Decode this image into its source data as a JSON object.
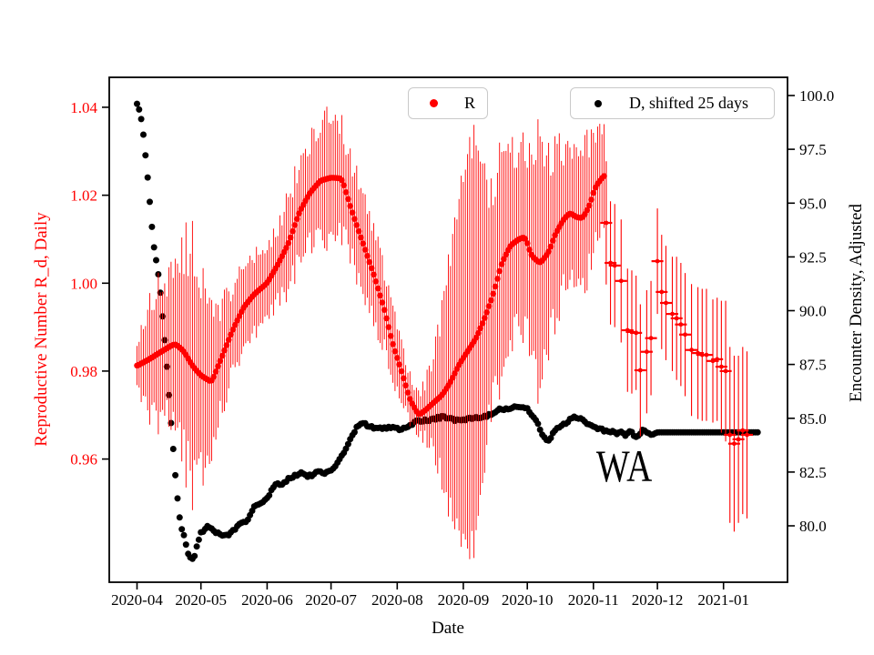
{
  "annotation": {
    "text": "WA"
  },
  "legend": [
    {
      "label": "R",
      "color": "#ff0000"
    },
    {
      "label": "D, shifted 25 days",
      "color": "#000000"
    }
  ],
  "axes": {
    "x": {
      "label": "Date",
      "lim": [
        "2020-03-19",
        "2021-01-31"
      ],
      "ticks": [
        {
          "label": "2020-04",
          "date": "2020-04-01"
        },
        {
          "label": "2020-05",
          "date": "2020-05-01"
        },
        {
          "label": "2020-06",
          "date": "2020-06-01"
        },
        {
          "label": "2020-07",
          "date": "2020-07-01"
        },
        {
          "label": "2020-08",
          "date": "2020-08-01"
        },
        {
          "label": "2020-09",
          "date": "2020-09-01"
        },
        {
          "label": "2020-10",
          "date": "2020-10-01"
        },
        {
          "label": "2020-11",
          "date": "2020-11-01"
        },
        {
          "label": "2020-12",
          "date": "2020-12-01"
        },
        {
          "label": "2021-01",
          "date": "2021-01-01"
        }
      ]
    },
    "y_left": {
      "label": "Reproductive Number R_d, Daily",
      "color": "#ff0000",
      "lim": [
        0.932,
        1.0468
      ],
      "ticks": [
        {
          "label": "1.04",
          "value": 1.04
        },
        {
          "label": "1.02",
          "value": 1.02
        },
        {
          "label": "1.00",
          "value": 1.0
        },
        {
          "label": "0.98",
          "value": 0.98
        },
        {
          "label": "0.96",
          "value": 0.96
        }
      ]
    },
    "y_right": {
      "label": "Encounter Density, Adjusted",
      "color": "#000000",
      "lim": [
        77.38,
        100.846
      ],
      "ticks": [
        {
          "label": "100.0",
          "value": 100.0
        },
        {
          "label": "97.5",
          "value": 97.5
        },
        {
          "label": "95.0",
          "value": 95.0
        },
        {
          "label": "92.5",
          "value": 92.5
        },
        {
          "label": "90.0",
          "value": 90.0
        },
        {
          "label": "87.5",
          "value": 87.5
        },
        {
          "label": "85.0",
          "value": 85.0
        },
        {
          "label": "82.5",
          "value": 82.5
        },
        {
          "label": "80.0",
          "value": 80.0
        }
      ]
    }
  },
  "chart_data": {
    "type": "scatter",
    "title": "",
    "x_unit": "date",
    "series": [
      {
        "name": "R",
        "axis": "left",
        "color": "#ff0000",
        "style": "dots-with-vertical-errorbars",
        "keypoints": [
          [
            "2020-04-01",
            0.9812,
            0.006
          ],
          [
            "2020-04-06",
            0.9825,
            0.011
          ],
          [
            "2020-04-11",
            0.984,
            0.015
          ],
          [
            "2020-04-16",
            0.9855,
            0.016
          ],
          [
            "2020-04-19",
            0.9862,
            0.018
          ],
          [
            "2020-04-23",
            0.9845,
            0.024
          ],
          [
            "2020-04-27",
            0.9812,
            0.026
          ],
          [
            "2020-05-01",
            0.979,
            0.022
          ],
          [
            "2020-05-06",
            0.9775,
            0.016
          ],
          [
            "2020-05-11",
            0.9835,
            0.011
          ],
          [
            "2020-05-16",
            0.9895,
            0.01
          ],
          [
            "2020-05-21",
            0.9945,
            0.009
          ],
          [
            "2020-05-26",
            0.9975,
            0.0085
          ],
          [
            "2020-06-01",
            1.0,
            0.008
          ],
          [
            "2020-06-06",
            1.0042,
            0.009
          ],
          [
            "2020-06-11",
            1.009,
            0.01
          ],
          [
            "2020-06-16",
            1.016,
            0.011
          ],
          [
            "2020-06-21",
            1.0205,
            0.012
          ],
          [
            "2020-06-26",
            1.0233,
            0.0135
          ],
          [
            "2020-07-01",
            1.024,
            0.013
          ],
          [
            "2020-07-06",
            1.0238,
            0.012
          ],
          [
            "2020-07-11",
            1.016,
            0.011
          ],
          [
            "2020-07-16",
            1.009,
            0.01
          ],
          [
            "2020-07-21",
            1.002,
            0.0095
          ],
          [
            "2020-07-26",
            0.994,
            0.009
          ],
          [
            "2020-07-30",
            0.986,
            0.008
          ],
          [
            "2020-08-03",
            0.98,
            0.006
          ],
          [
            "2020-08-07",
            0.9735,
            0.005
          ],
          [
            "2020-08-11",
            0.97,
            0.005
          ],
          [
            "2020-08-14",
            0.971,
            0.006
          ],
          [
            "2020-08-18",
            0.9728,
            0.01
          ],
          [
            "2020-08-22",
            0.9745,
            0.018
          ],
          [
            "2020-08-26",
            0.9775,
            0.028
          ],
          [
            "2020-08-30",
            0.9815,
            0.038
          ],
          [
            "2020-09-03",
            0.9845,
            0.048
          ],
          [
            "2020-09-07",
            0.9875,
            0.046
          ],
          [
            "2020-09-11",
            0.992,
            0.032
          ],
          [
            "2020-09-15",
            0.9975,
            0.026
          ],
          [
            "2020-09-19",
            1.0045,
            0.022
          ],
          [
            "2020-09-23",
            1.0085,
            0.02
          ],
          [
            "2020-09-27",
            1.01,
            0.019
          ],
          [
            "2020-09-30",
            1.0105,
            0.019
          ],
          [
            "2020-10-03",
            1.0062,
            0.023
          ],
          [
            "2020-10-07",
            1.0045,
            0.027
          ],
          [
            "2020-10-11",
            1.007,
            0.022
          ],
          [
            "2020-10-14",
            1.011,
            0.019
          ],
          [
            "2020-10-18",
            1.0145,
            0.016
          ],
          [
            "2020-10-21",
            1.016,
            0.016
          ],
          [
            "2020-10-24",
            1.015,
            0.016
          ],
          [
            "2020-10-27",
            1.0148,
            0.015
          ],
          [
            "2020-10-30",
            1.0175,
            0.015
          ],
          [
            "2020-11-02",
            1.022,
            0.014
          ],
          [
            "2020-11-06",
            1.0245,
            0.013
          ]
        ],
        "sparse_points": [
          [
            "2020-11-07",
            1.0137,
            0.014
          ],
          [
            "2020-11-09",
            1.0046,
            0.014
          ],
          [
            "2020-11-11",
            1.004,
            0.014
          ],
          [
            "2020-11-14",
            1.0005,
            0.014
          ],
          [
            "2020-11-17",
            0.9893,
            0.014
          ],
          [
            "2020-11-19",
            0.9889,
            0.014
          ],
          [
            "2020-11-21",
            0.9887,
            0.013
          ],
          [
            "2020-11-23",
            0.9802,
            0.015
          ],
          [
            "2020-11-26",
            0.9844,
            0.014
          ],
          [
            "2020-11-28",
            0.9875,
            0.013
          ],
          [
            "2020-12-01",
            1.005,
            0.012
          ],
          [
            "2020-12-03",
            0.998,
            0.013
          ],
          [
            "2020-12-05",
            0.9955,
            0.013
          ],
          [
            "2020-12-08",
            0.993,
            0.013
          ],
          [
            "2020-12-10",
            0.992,
            0.014
          ],
          [
            "2020-12-12",
            0.9906,
            0.014
          ],
          [
            "2020-12-14",
            0.9883,
            0.014
          ],
          [
            "2020-12-17",
            0.9848,
            0.015
          ],
          [
            "2020-12-20",
            0.9841,
            0.015
          ],
          [
            "2020-12-22",
            0.9837,
            0.015
          ],
          [
            "2020-12-24",
            0.9837,
            0.015
          ],
          [
            "2020-12-27",
            0.9823,
            0.014
          ],
          [
            "2020-12-29",
            0.9827,
            0.014
          ],
          [
            "2020-12-31",
            0.981,
            0.015
          ],
          [
            "2021-01-02",
            0.98,
            0.016
          ],
          [
            "2021-01-04",
            0.9655,
            0.02
          ],
          [
            "2021-01-06",
            0.9635,
            0.02
          ],
          [
            "2021-01-08",
            0.9645,
            0.019
          ],
          [
            "2021-01-10",
            0.9665,
            0.019
          ],
          [
            "2021-01-12",
            0.9655,
            0.019
          ]
        ]
      },
      {
        "name": "D, shifted 25 days",
        "axis": "right",
        "color": "#000000",
        "style": "dots",
        "keypoints": [
          [
            "2020-04-01",
            99.7
          ],
          [
            "2020-04-02",
            99.3
          ],
          [
            "2020-04-03",
            99.0
          ],
          [
            "2020-04-04",
            98.2
          ],
          [
            "2020-04-05",
            97.3
          ],
          [
            "2020-04-06",
            96.3
          ],
          [
            "2020-04-07",
            95.1
          ],
          [
            "2020-04-08",
            93.9
          ],
          [
            "2020-04-09",
            92.9
          ],
          [
            "2020-04-10",
            92.3
          ],
          [
            "2020-04-11",
            91.8
          ],
          [
            "2020-04-12",
            91.0
          ],
          [
            "2020-04-13",
            89.7
          ],
          [
            "2020-04-14",
            88.5
          ],
          [
            "2020-04-15",
            87.6
          ],
          [
            "2020-04-16",
            86.0
          ],
          [
            "2020-04-17",
            84.9
          ],
          [
            "2020-04-18",
            83.4
          ],
          [
            "2020-04-19",
            82.4
          ],
          [
            "2020-04-20",
            81.3
          ],
          [
            "2020-04-21",
            80.2
          ],
          [
            "2020-04-22",
            79.9
          ],
          [
            "2020-04-23",
            79.6
          ],
          [
            "2020-04-24",
            79.05
          ],
          [
            "2020-04-25",
            78.7
          ],
          [
            "2020-04-26",
            78.45
          ],
          [
            "2020-04-27",
            78.45
          ],
          [
            "2020-04-28",
            78.55
          ],
          [
            "2020-04-29",
            79.0
          ],
          [
            "2020-04-30",
            79.5
          ],
          [
            "2020-05-02",
            79.8
          ],
          [
            "2020-05-05",
            80.0
          ],
          [
            "2020-05-08",
            79.7
          ],
          [
            "2020-05-11",
            79.55
          ],
          [
            "2020-05-14",
            79.55
          ],
          [
            "2020-05-16",
            79.8
          ],
          [
            "2020-05-20",
            80.1
          ],
          [
            "2020-05-23",
            80.3
          ],
          [
            "2020-05-26",
            80.9
          ],
          [
            "2020-05-29",
            81.05
          ],
          [
            "2020-05-31",
            81.15
          ],
          [
            "2020-06-03",
            81.6
          ],
          [
            "2020-06-05",
            82.0
          ],
          [
            "2020-06-08",
            81.9
          ],
          [
            "2020-06-11",
            82.2
          ],
          [
            "2020-06-14",
            82.35
          ],
          [
            "2020-06-17",
            82.45
          ],
          [
            "2020-06-21",
            82.3
          ],
          [
            "2020-06-25",
            82.55
          ],
          [
            "2020-06-29",
            82.45
          ],
          [
            "2020-07-03",
            82.8
          ],
          [
            "2020-07-06",
            83.2
          ],
          [
            "2020-07-09",
            83.8
          ],
          [
            "2020-07-12",
            84.4
          ],
          [
            "2020-07-15",
            84.85
          ],
          [
            "2020-07-20",
            84.56
          ],
          [
            "2020-07-24",
            84.5
          ],
          [
            "2020-07-28",
            84.56
          ],
          [
            "2020-08-02",
            84.5
          ],
          [
            "2020-08-06",
            84.56
          ],
          [
            "2020-08-10",
            84.86
          ],
          [
            "2020-08-15",
            84.9
          ],
          [
            "2020-08-19",
            85.0
          ],
          [
            "2020-08-23",
            85.06
          ],
          [
            "2020-08-28",
            84.9
          ],
          [
            "2020-09-01",
            84.9
          ],
          [
            "2020-09-05",
            85.0
          ],
          [
            "2020-09-09",
            85.06
          ],
          [
            "2020-09-14",
            85.18
          ],
          [
            "2020-09-18",
            85.4
          ],
          [
            "2020-09-22",
            85.47
          ],
          [
            "2020-09-26",
            85.5
          ],
          [
            "2020-10-01",
            85.45
          ],
          [
            "2020-10-05",
            84.9
          ],
          [
            "2020-10-09",
            84.06
          ],
          [
            "2020-10-11",
            83.93
          ],
          [
            "2020-10-13",
            84.27
          ],
          [
            "2020-10-15",
            84.56
          ],
          [
            "2020-10-17",
            84.65
          ],
          [
            "2020-10-20",
            84.86
          ],
          [
            "2020-10-22",
            85.0
          ],
          [
            "2020-10-24",
            85.06
          ],
          [
            "2020-10-26",
            85.0
          ],
          [
            "2020-10-28",
            84.86
          ],
          [
            "2020-10-30",
            84.7
          ],
          [
            "2020-11-01",
            84.65
          ],
          [
            "2020-11-03",
            84.5
          ],
          [
            "2020-11-06",
            84.45
          ],
          [
            "2020-11-08",
            84.37
          ],
          [
            "2020-11-10",
            84.45
          ],
          [
            "2020-11-12",
            84.27
          ],
          [
            "2020-11-14",
            84.45
          ],
          [
            "2020-11-16",
            84.15
          ],
          [
            "2020-11-18",
            84.56
          ],
          [
            "2020-11-20",
            84.06
          ],
          [
            "2020-11-22",
            84.15
          ],
          [
            "2020-11-24",
            84.45
          ],
          [
            "2020-11-26",
            84.37
          ],
          [
            "2020-11-28",
            84.2
          ],
          [
            "2020-12-01",
            84.35
          ],
          [
            "2021-01-17",
            84.35
          ]
        ]
      }
    ]
  }
}
